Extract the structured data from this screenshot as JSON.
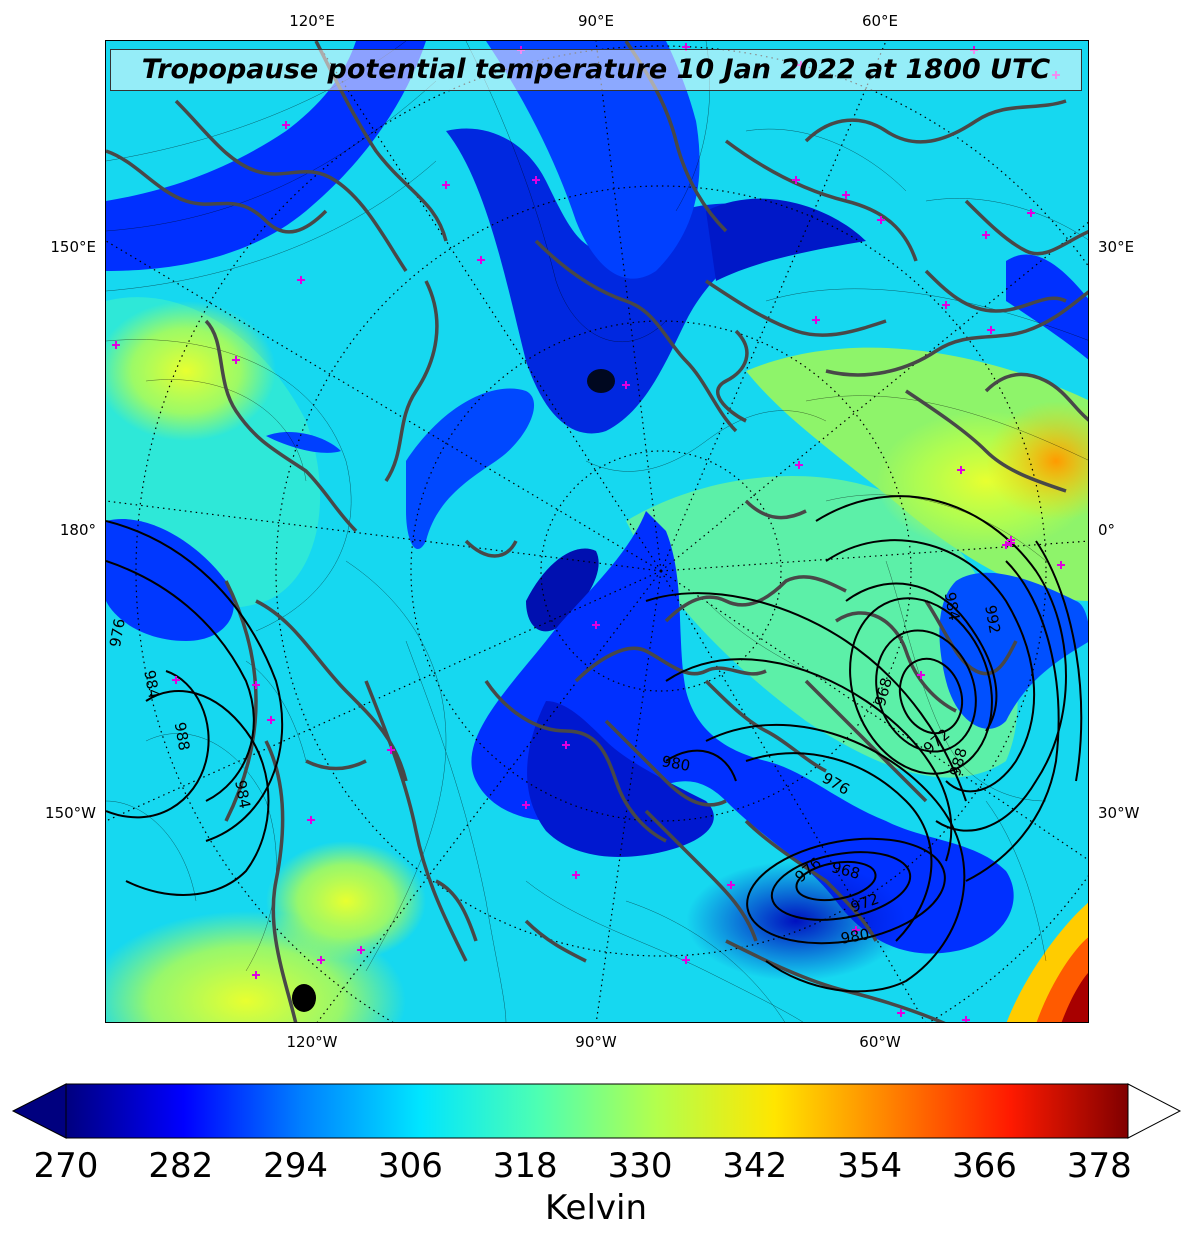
{
  "title": "Tropopause potential temperature 10 Jan 2022 at 1800 UTC",
  "graticule_labels": {
    "top": [
      "120°E",
      "90°E",
      "60°E"
    ],
    "bottom": [
      "120°W",
      "90°W",
      "60°W"
    ],
    "left": [
      "150°E",
      "180°",
      "150°W"
    ],
    "right": [
      "30°E",
      "0°",
      "30°W"
    ]
  },
  "colorbar": {
    "label": "Kelvin",
    "ticks": [
      "270",
      "282",
      "294",
      "306",
      "318",
      "330",
      "342",
      "354",
      "366",
      "378"
    ],
    "min": 270,
    "max": 381,
    "colormap": "jet",
    "extend": "both",
    "colors": [
      "#00007f",
      "#0000ff",
      "#0080ff",
      "#00e5ff",
      "#4dffb3",
      "#b3ff4d",
      "#ffe600",
      "#ff8000",
      "#ff1a00",
      "#800000"
    ]
  },
  "pressure_contour_labels": [
    "976",
    "984",
    "988",
    "984",
    "980",
    "976",
    "968",
    "972",
    "976",
    "968",
    "972",
    "980",
    "984",
    "992",
    "988"
  ],
  "colors": {
    "coastline": "#484848",
    "contour": "#000000",
    "marker": "#e000e0"
  }
}
